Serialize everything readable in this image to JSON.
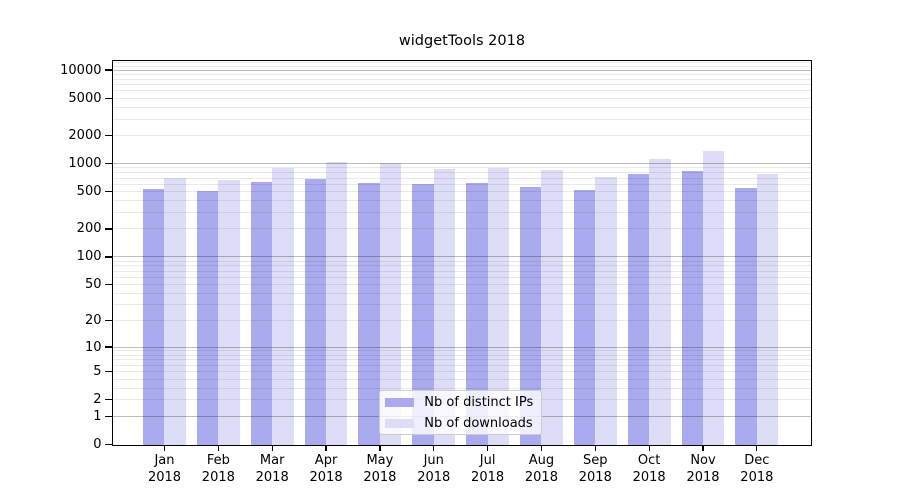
{
  "chart_data": {
    "type": "bar",
    "title": "widgetTools 2018",
    "yscale": "log1p",
    "grid": true,
    "legend_position": "lower center",
    "ylim": [
      0,
      12500
    ],
    "yticks": [
      0,
      1,
      2,
      5,
      10,
      20,
      50,
      100,
      200,
      500,
      1000,
      2000,
      5000,
      10000
    ],
    "x_categories": [
      "Jan",
      "Feb",
      "Mar",
      "Apr",
      "May",
      "Jun",
      "Jul",
      "Aug",
      "Sep",
      "Oct",
      "Nov",
      "Dec"
    ],
    "x_year": "2018",
    "series": [
      {
        "name": "Nb of distinct IPs",
        "color": "#aaaaee",
        "values": [
          532,
          514,
          641,
          680,
          626,
          601,
          626,
          563,
          523,
          770,
          835,
          550
        ]
      },
      {
        "name": "Nb of downloads",
        "color": "#ddddf8",
        "values": [
          708,
          669,
          905,
          1050,
          1009,
          877,
          899,
          849,
          715,
          1122,
          1366,
          770
        ]
      }
    ]
  }
}
